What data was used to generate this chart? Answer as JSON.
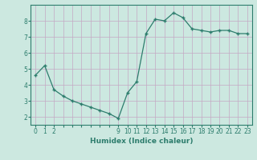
{
  "x": [
    0,
    1,
    2,
    3,
    4,
    5,
    6,
    7,
    8,
    9,
    10,
    11,
    12,
    13,
    14,
    15,
    16,
    17,
    18,
    19,
    20,
    21,
    22,
    23
  ],
  "y": [
    4.6,
    5.2,
    3.7,
    3.3,
    3.0,
    2.8,
    2.6,
    2.4,
    2.2,
    1.9,
    3.5,
    4.2,
    7.2,
    8.1,
    8.0,
    8.5,
    8.2,
    7.5,
    7.4,
    7.3,
    7.4,
    7.4,
    7.2,
    7.2
  ],
  "xlabel": "Humidex (Indice chaleur)",
  "line_color": "#2d7d6d",
  "marker_color": "#2d7d6d",
  "bg_color": "#cce8e0",
  "grid_color_major": "#c4a8c4",
  "grid_color_minor": "#c4a8c4",
  "ylim": [
    1.5,
    9.0
  ],
  "xlim": [
    -0.5,
    23.5
  ],
  "yticks": [
    2,
    3,
    4,
    5,
    6,
    7,
    8
  ],
  "xtick_labels": [
    "0",
    "1",
    "2",
    "",
    "",
    "",
    "",
    "",
    "",
    "9",
    "10",
    "11",
    "12",
    "13",
    "14",
    "15",
    "16",
    "17",
    "18",
    "19",
    "20",
    "21",
    "22",
    "23"
  ],
  "figsize": [
    3.2,
    2.0
  ],
  "dpi": 100
}
